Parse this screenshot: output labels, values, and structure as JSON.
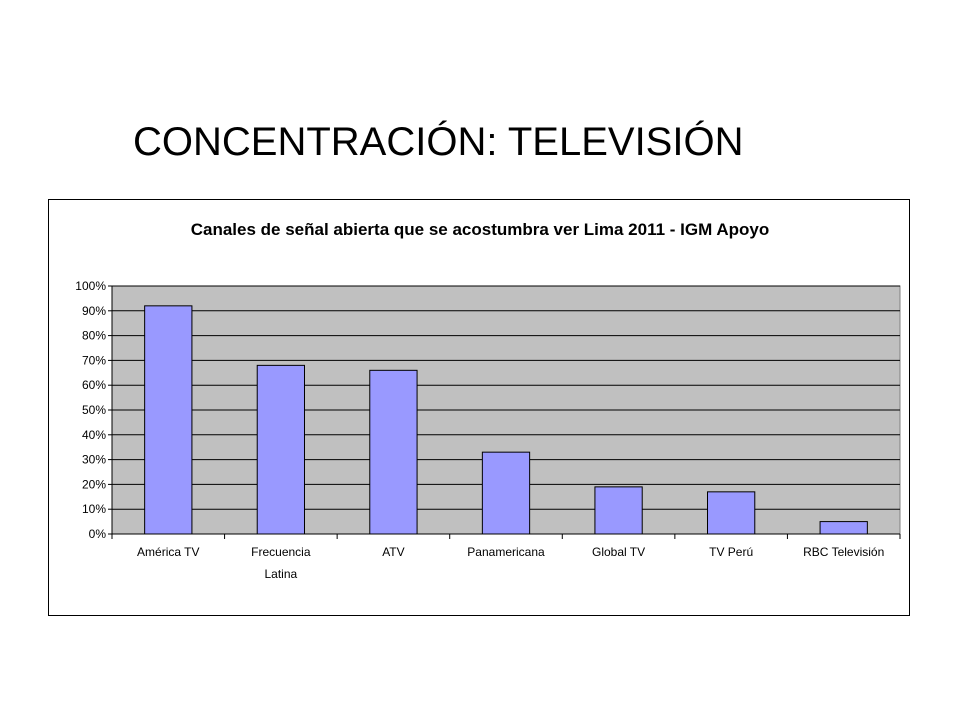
{
  "slide": {
    "title": "CONCENTRACIÓN: TELEVISIÓN"
  },
  "colors": {
    "plot_background": "#c0c0c0",
    "bar_fill": "#9999ff",
    "bar_stroke": "#000000",
    "gridline": "#000000"
  },
  "chart_data": {
    "type": "bar",
    "title": "Canales de señal abierta que se acostumbra ver Lima 2011 - IGM Apoyo",
    "xlabel": "",
    "ylabel": "",
    "categories": [
      [
        "América TV"
      ],
      [
        "Frecuencia",
        "Latina"
      ],
      [
        "ATV"
      ],
      [
        "Panamericana"
      ],
      [
        "Global TV"
      ],
      [
        "TV Perú"
      ],
      [
        "RBC Televisión"
      ]
    ],
    "values": [
      0.92,
      0.68,
      0.66,
      0.33,
      0.19,
      0.17,
      0.05
    ],
    "ylim": [
      0,
      1
    ],
    "yticks": [
      0,
      0.1,
      0.2,
      0.3,
      0.4,
      0.5,
      0.6,
      0.7,
      0.8,
      0.9,
      1.0
    ],
    "ytick_labels": [
      "0%",
      "10%",
      "20%",
      "30%",
      "40%",
      "50%",
      "60%",
      "70%",
      "80%",
      "90%",
      "100%"
    ],
    "grid": true,
    "legend": "none"
  }
}
